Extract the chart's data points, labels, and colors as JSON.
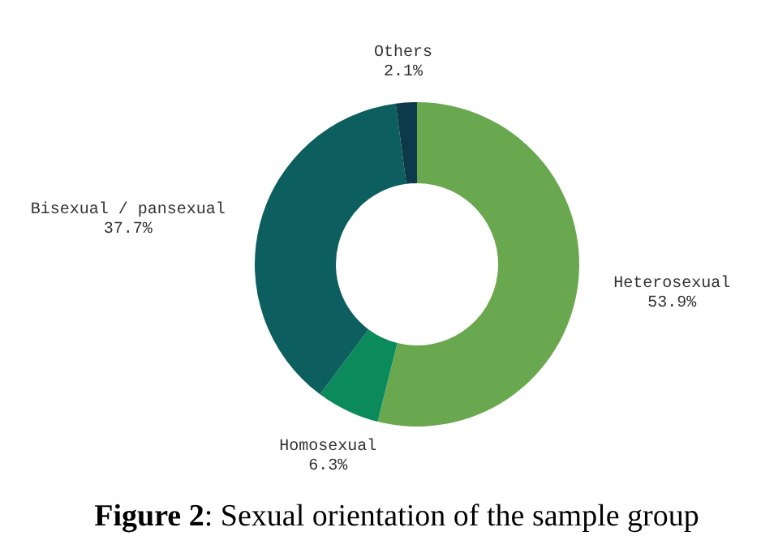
{
  "chart_data": {
    "type": "donut",
    "title": "Figure 2: Sexual orientation of the sample group",
    "categories": [
      "Heterosexual",
      "Homosexual",
      "Bisexual / pansexual",
      "Others"
    ],
    "values": [
      53.9,
      6.3,
      37.7,
      2.1
    ],
    "value_labels": [
      "53.9%",
      "6.3%",
      "37.7%",
      "2.1%"
    ],
    "colors": [
      "#6aa84f",
      "#0b8a5b",
      "#0d5e5f",
      "#0c3a4a"
    ]
  }
}
